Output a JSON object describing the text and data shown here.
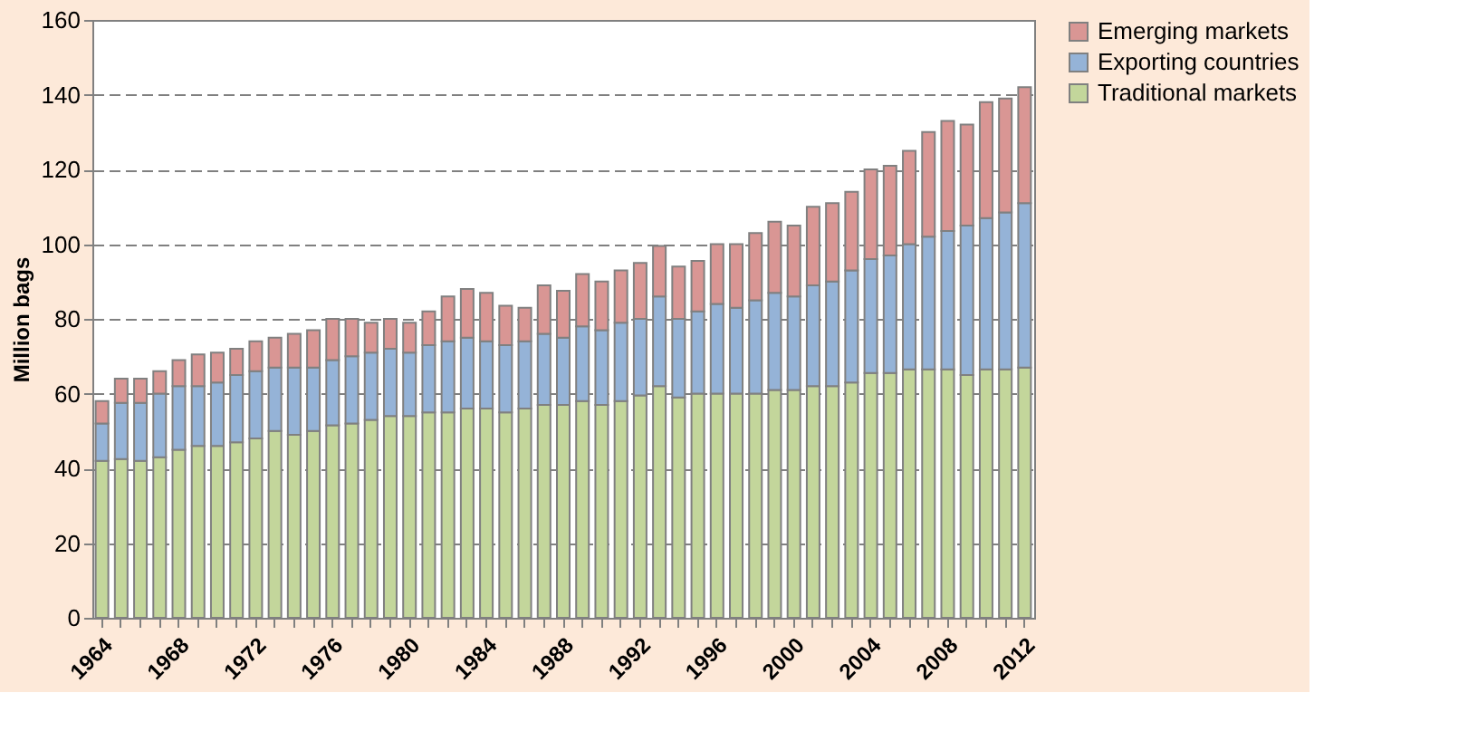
{
  "chart_data": {
    "type": "bar",
    "stacked": true,
    "ylabel": "Million bags",
    "categories": [
      "1964",
      null,
      null,
      null,
      "1968",
      null,
      null,
      null,
      "1972",
      null,
      null,
      null,
      "1976",
      null,
      null,
      null,
      "1980",
      null,
      null,
      null,
      "1984",
      null,
      null,
      null,
      "1988",
      null,
      null,
      null,
      "1992",
      null,
      null,
      null,
      "1996",
      null,
      null,
      null,
      "2000",
      null,
      null,
      null,
      "2004",
      null,
      null,
      null,
      "2008",
      null,
      null,
      null,
      "2012"
    ],
    "series": [
      {
        "name": "Traditional markets",
        "color": "#c3d69b",
        "values": [
          42,
          42.5,
          42,
          43,
          45,
          46,
          46,
          47,
          48,
          50,
          49,
          50,
          51.5,
          52,
          53,
          54,
          54,
          55,
          55,
          56,
          56,
          55,
          56,
          57,
          57,
          58,
          57,
          58,
          59.5,
          62,
          59,
          60,
          60,
          60,
          60,
          61,
          61,
          62,
          62,
          63,
          65.5,
          65.5,
          66.5,
          66.5,
          66.5,
          65,
          66.5,
          66.5,
          67
        ]
      },
      {
        "name": "Exporting countries",
        "color": "#95b3d7",
        "values": [
          10,
          15,
          15.5,
          17,
          17,
          16,
          17,
          18,
          18,
          17,
          18,
          17,
          17.5,
          18,
          18,
          18,
          17,
          18,
          19,
          19,
          18,
          18,
          18,
          19,
          18,
          20,
          20,
          21,
          20.5,
          24,
          21,
          22,
          24,
          23,
          25,
          26,
          25,
          27,
          28,
          30,
          30.5,
          31.5,
          33.5,
          35.5,
          37,
          40,
          40.5,
          42,
          44
        ]
      },
      {
        "name": "Emerging markets",
        "color": "#d99694",
        "values": [
          6,
          6.5,
          6.5,
          6,
          7,
          8.5,
          8,
          7,
          8,
          8,
          9,
          10,
          11,
          10,
          8,
          8,
          8,
          9,
          12,
          13,
          13,
          10.5,
          9,
          13,
          12.5,
          14,
          13,
          14,
          15,
          13.5,
          14,
          13.5,
          16,
          17,
          18,
          19,
          19,
          21,
          21,
          21,
          24,
          24,
          25,
          28,
          29.5,
          27,
          31,
          30.5,
          31
        ]
      }
    ],
    "ylim": [
      0,
      160
    ],
    "yticks": [
      0,
      20,
      40,
      60,
      80,
      100,
      120,
      140,
      160
    ],
    "grid": "y",
    "legend": "right"
  }
}
